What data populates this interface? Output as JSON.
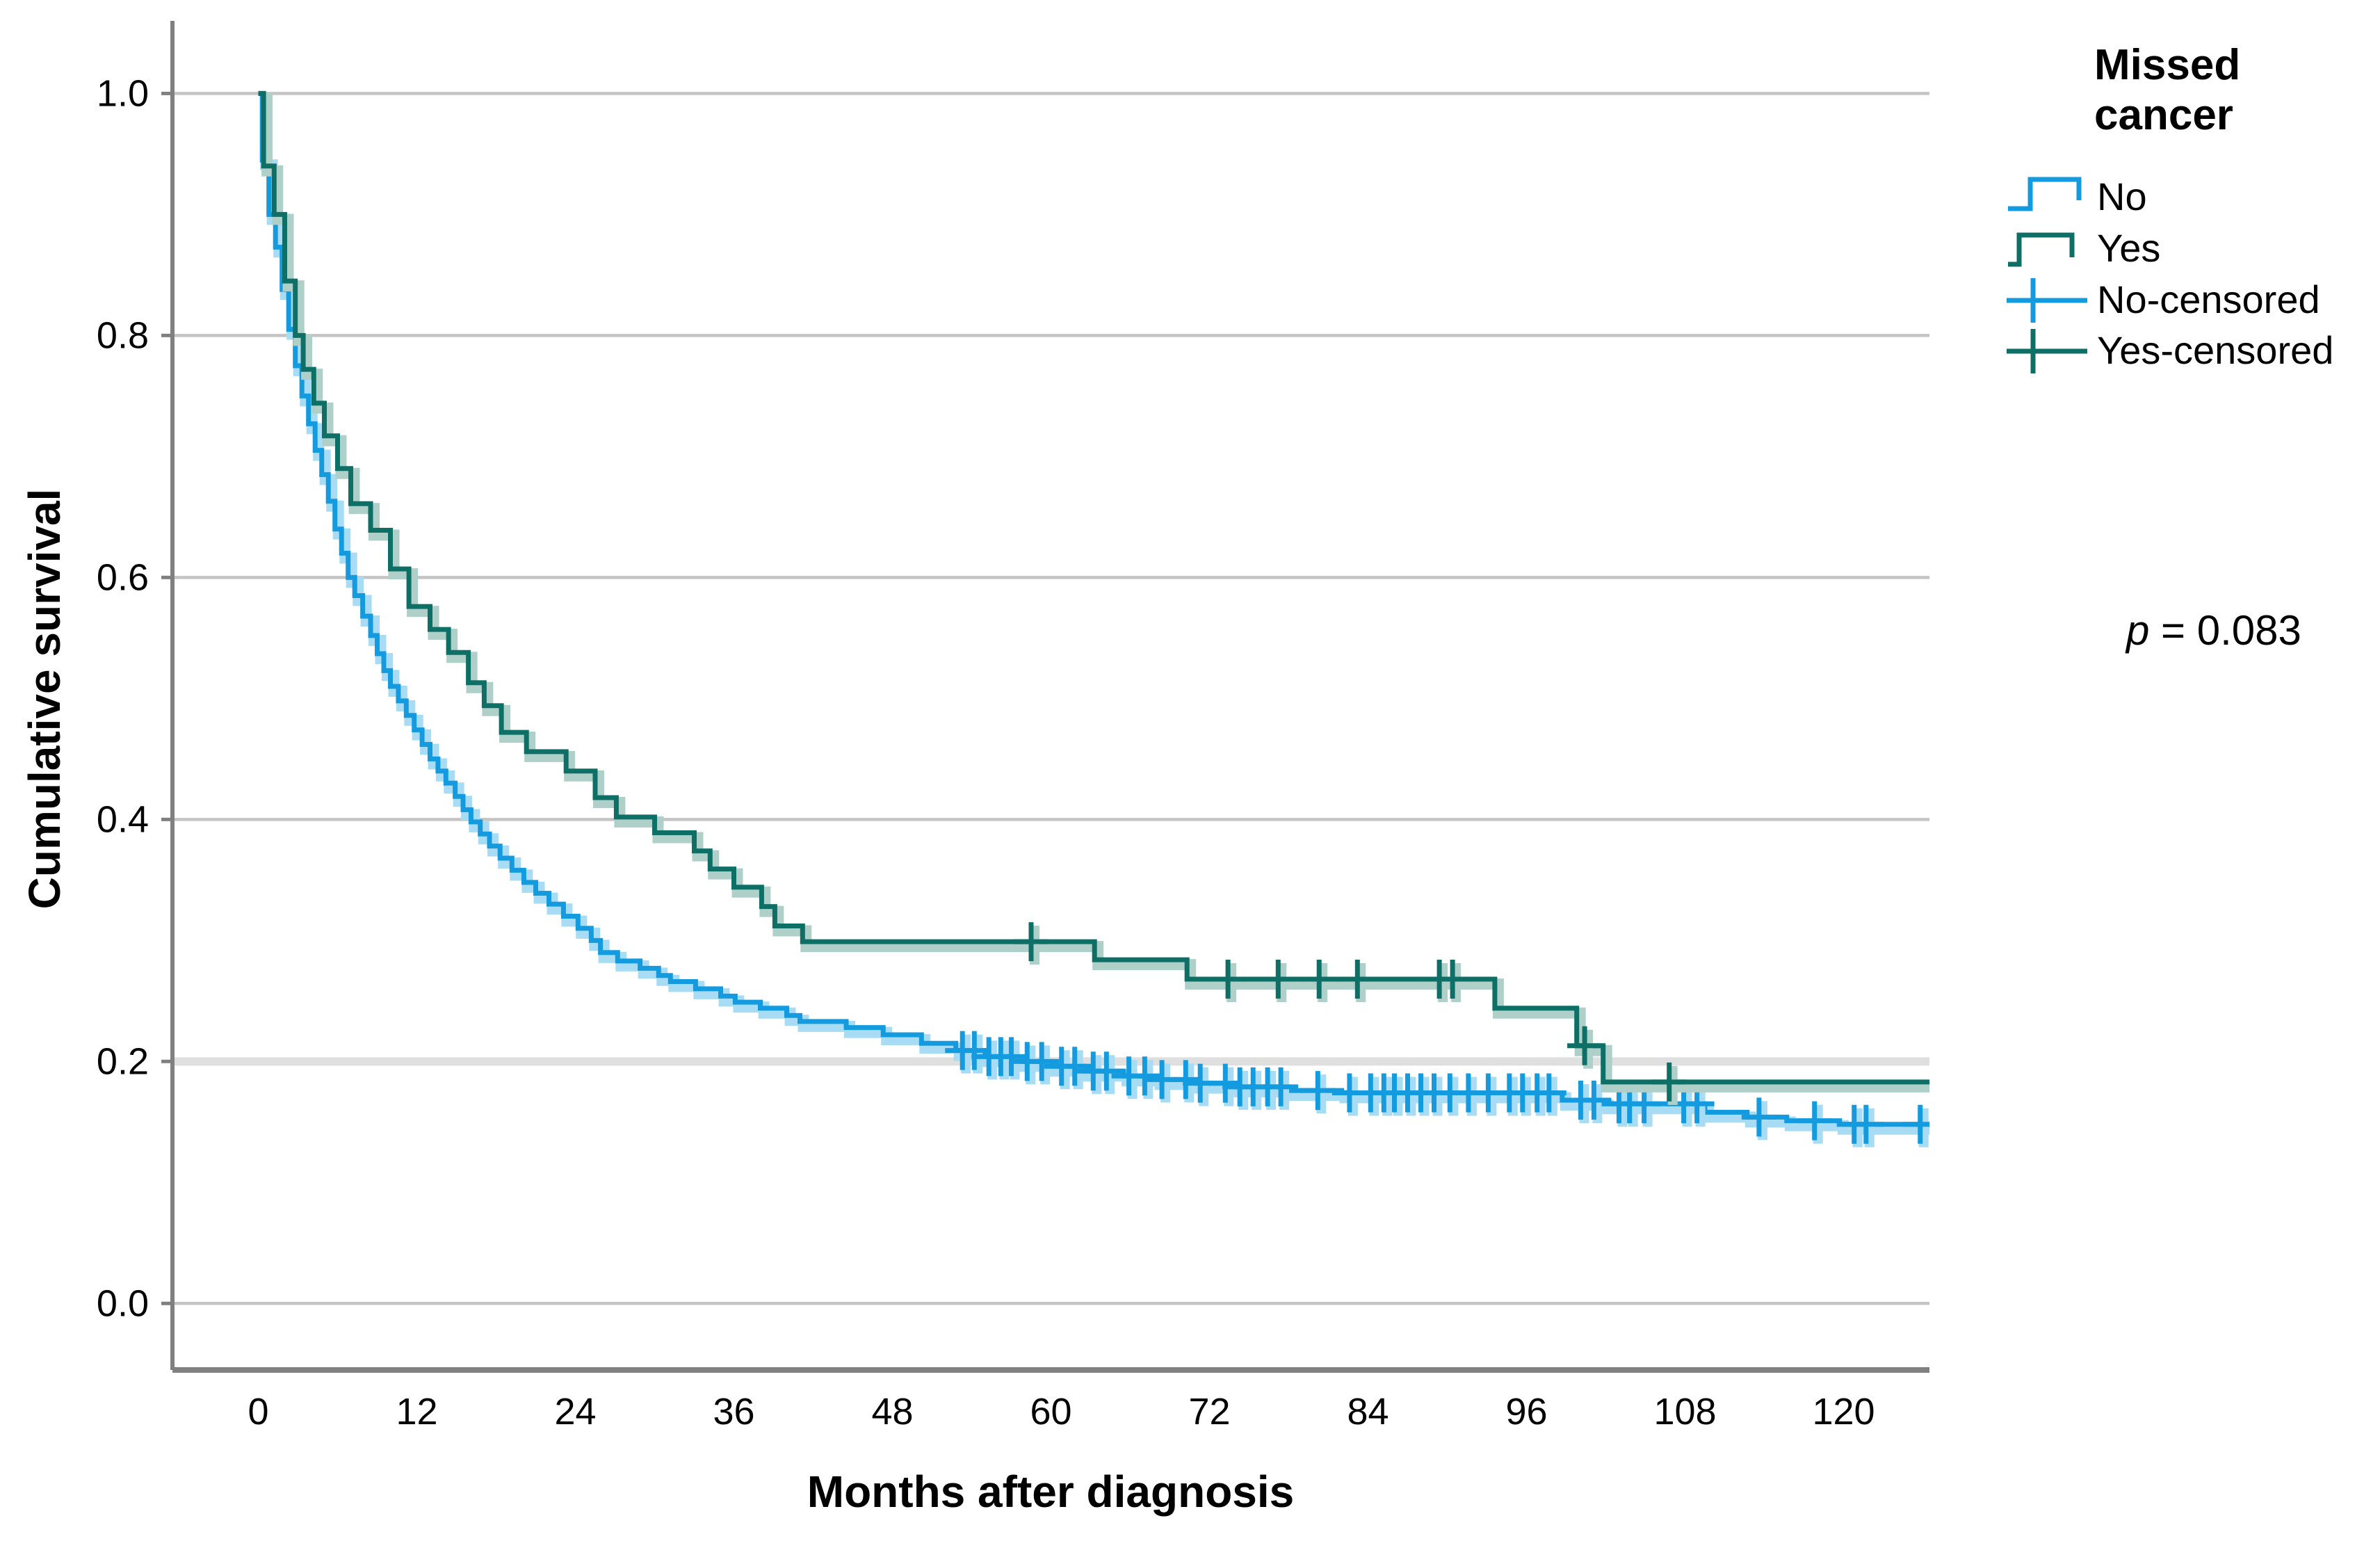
{
  "chart_data": {
    "type": "line",
    "subtype": "kaplan-meier-step",
    "title": "",
    "xlabel": "Months after diagnosis",
    "ylabel": "Cumulative survival",
    "x_ticks": [
      0,
      12,
      24,
      36,
      48,
      60,
      72,
      84,
      96,
      108,
      120
    ],
    "y_ticks": [
      {
        "value": 0.0,
        "label": "0.0"
      },
      {
        "value": 0.2,
        "label": "0.2"
      },
      {
        "value": 0.4,
        "label": "0.4"
      },
      {
        "value": 0.6,
        "label": "0.6"
      },
      {
        "value": 0.8,
        "label": "0.8"
      },
      {
        "value": 1.0,
        "label": "1.0"
      }
    ],
    "xlim": [
      -6.5,
      126.5
    ],
    "ylim": [
      -0.055,
      1.06
    ],
    "end_month": 126.5,
    "grid": true,
    "legend_position": "right",
    "series": [
      {
        "name": "No",
        "color": "#149BDF",
        "halo": "#A8DCF5",
        "points": [
          [
            0,
            1.0
          ],
          [
            0.3,
            0.945
          ],
          [
            0.8,
            0.9
          ],
          [
            1.3,
            0.873
          ],
          [
            1.8,
            0.838
          ],
          [
            2.3,
            0.805
          ],
          [
            2.8,
            0.775
          ],
          [
            3.3,
            0.75
          ],
          [
            3.8,
            0.727
          ],
          [
            4.3,
            0.705
          ],
          [
            4.8,
            0.685
          ],
          [
            5.3,
            0.663
          ],
          [
            5.8,
            0.64
          ],
          [
            6.3,
            0.62
          ],
          [
            6.8,
            0.6
          ],
          [
            7.3,
            0.585
          ],
          [
            7.9,
            0.568
          ],
          [
            8.5,
            0.552
          ],
          [
            9.0,
            0.537
          ],
          [
            9.5,
            0.523
          ],
          [
            10.0,
            0.51
          ],
          [
            10.6,
            0.498
          ],
          [
            11.2,
            0.486
          ],
          [
            11.8,
            0.474
          ],
          [
            12.4,
            0.462
          ],
          [
            13.0,
            0.45
          ],
          [
            13.6,
            0.44
          ],
          [
            14.2,
            0.43
          ],
          [
            14.9,
            0.419
          ],
          [
            15.5,
            0.408
          ],
          [
            16.1,
            0.398
          ],
          [
            16.8,
            0.388
          ],
          [
            17.5,
            0.378
          ],
          [
            18.3,
            0.368
          ],
          [
            19.2,
            0.358
          ],
          [
            20.1,
            0.348
          ],
          [
            21.0,
            0.339
          ],
          [
            22.0,
            0.33
          ],
          [
            23.1,
            0.32
          ],
          [
            24.2,
            0.31
          ],
          [
            25.2,
            0.3
          ],
          [
            25.9,
            0.29
          ],
          [
            27.2,
            0.283
          ],
          [
            28.9,
            0.277
          ],
          [
            30.3,
            0.271
          ],
          [
            31.2,
            0.266
          ],
          [
            33.1,
            0.26
          ],
          [
            35.0,
            0.254
          ],
          [
            36.1,
            0.249
          ],
          [
            38.0,
            0.244
          ],
          [
            40.0,
            0.238
          ],
          [
            41.0,
            0.233
          ],
          [
            44.5,
            0.228
          ],
          [
            47.3,
            0.222
          ],
          [
            50.2,
            0.215
          ],
          [
            52.8,
            0.209
          ],
          [
            55.0,
            0.204
          ],
          [
            57.5,
            0.2
          ],
          [
            60.0,
            0.196
          ],
          [
            62.5,
            0.192
          ],
          [
            65.5,
            0.188
          ],
          [
            68.0,
            0.185
          ],
          [
            71.0,
            0.182
          ],
          [
            74.0,
            0.179
          ],
          [
            78.0,
            0.176
          ],
          [
            82.0,
            0.174
          ],
          [
            98.7,
            0.168
          ],
          [
            101.9,
            0.165
          ],
          [
            109.5,
            0.158
          ],
          [
            112.7,
            0.154
          ],
          [
            115.7,
            0.151
          ],
          [
            119.7,
            0.148
          ]
        ],
        "censored_months": [
          53.3,
          54.2,
          55.3,
          56.2,
          57.0,
          58.2,
          59.3,
          60.8,
          61.8,
          63.2,
          64.2,
          65.9,
          67.1,
          68.4,
          70.2,
          71.3,
          73.2,
          74.3,
          75.3,
          76.4,
          77.4,
          80.2,
          82.6,
          84.2,
          85.2,
          86.0,
          87.0,
          88.0,
          89.0,
          90.2,
          91.6,
          93.1,
          94.7,
          95.7,
          96.8,
          97.7,
          100.1,
          101.1,
          103.0,
          103.8,
          104.9,
          107.9,
          108.9,
          113.6,
          117.8,
          120.8,
          121.7,
          125.8
        ]
      },
      {
        "name": "Yes",
        "color": "#0E6F66",
        "halo": "#AFD0C9",
        "points": [
          [
            0,
            1.0
          ],
          [
            0.4,
            0.94
          ],
          [
            1.2,
            0.9
          ],
          [
            2.0,
            0.845
          ],
          [
            2.8,
            0.8
          ],
          [
            3.4,
            0.772
          ],
          [
            4.2,
            0.744
          ],
          [
            5.0,
            0.717
          ],
          [
            6.0,
            0.69
          ],
          [
            7.0,
            0.661
          ],
          [
            8.5,
            0.639
          ],
          [
            10.0,
            0.607
          ],
          [
            11.4,
            0.576
          ],
          [
            13.0,
            0.557
          ],
          [
            14.4,
            0.538
          ],
          [
            15.9,
            0.513
          ],
          [
            17.1,
            0.494
          ],
          [
            18.4,
            0.472
          ],
          [
            20.3,
            0.456
          ],
          [
            23.3,
            0.44
          ],
          [
            25.5,
            0.418
          ],
          [
            27.1,
            0.402
          ],
          [
            30.0,
            0.389
          ],
          [
            33.0,
            0.374
          ],
          [
            34.2,
            0.359
          ],
          [
            36.0,
            0.344
          ],
          [
            38.1,
            0.328
          ],
          [
            39.1,
            0.312
          ],
          [
            41.2,
            0.299
          ],
          [
            63.3,
            0.284
          ],
          [
            70.3,
            0.268
          ],
          [
            93.6,
            0.244
          ],
          [
            99.8,
            0.213
          ],
          [
            101.8,
            0.183
          ]
        ],
        "censored_months": [
          58.5,
          73.4,
          77.2,
          80.3,
          83.2,
          89.4,
          90.4,
          100.4,
          106.8
        ]
      }
    ]
  },
  "legend": {
    "title_line1": "Missed",
    "title_line2": "cancer",
    "items": [
      {
        "label": "No"
      },
      {
        "label": "Yes"
      },
      {
        "label": "No-censored"
      },
      {
        "label": "Yes-censored"
      }
    ]
  },
  "annotation": {
    "p_italic": "p",
    "p_rest": " = 0.083"
  },
  "style_colors": {
    "grid": "#C4C4C4",
    "grid_band_02": "#DFDFDF",
    "axis": "#808080",
    "text": "#000000"
  }
}
